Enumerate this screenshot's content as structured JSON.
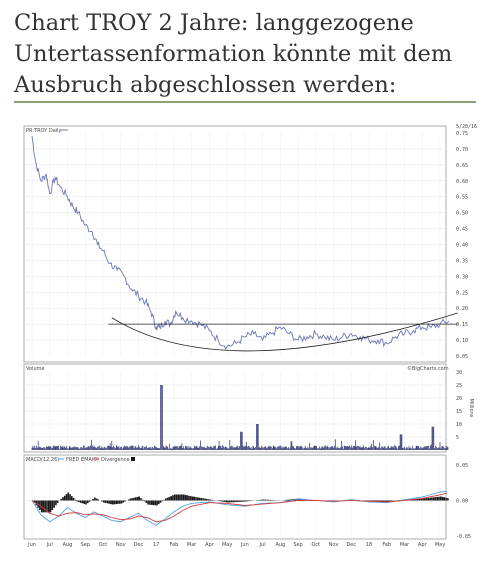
{
  "heading": {
    "line1": "Chart TROY 2 Jahre: langgezogene",
    "line2": "Untertassenformation könnte mit dem",
    "line3": "Ausbruch abgeschlossen werden:"
  },
  "colors": {
    "price": "#6e76b4",
    "volume": "#2a2d6a",
    "macd": "#1a1a1a",
    "macd_line": "#4f9fe3",
    "signal": "#d63b3b",
    "rule": "#8aa178"
  },
  "chart_data": [
    {
      "type": "line",
      "title": "PR:TROY Daily",
      "date_label": "5/20/16",
      "ylim": [
        0.05,
        0.75
      ],
      "y_ticks": [
        "0.75",
        "0.70",
        "0.65",
        "0.60",
        "0.55",
        "0.50",
        "0.45",
        "0.40",
        "0.35",
        "0.30",
        "0.25",
        "0.20",
        "0.15",
        "0.10",
        "0.05"
      ],
      "months": [
        "Jun",
        "Jul",
        "Aug",
        "Sep",
        "Oct",
        "Nov",
        "Dec",
        "17",
        "Feb",
        "Mar",
        "Apr",
        "May",
        "Jun",
        "Jul",
        "Aug",
        "Sep",
        "Oct",
        "Nov",
        "Dec",
        "18",
        "Feb",
        "Mar",
        "Apr",
        "May"
      ],
      "series": [
        {
          "x": [
            0,
            0.2,
            0.5,
            0.8,
            1.0,
            1.3,
            1.6,
            2.0,
            2.3,
            2.6,
            3.0,
            3.4,
            3.7,
            4.0,
            4.4,
            4.8,
            5.2,
            5.6,
            6.0,
            6.4,
            6.7,
            7.0,
            7.2,
            7.5,
            7.8,
            8.1,
            8.5,
            9.0,
            9.5,
            10.0,
            10.5,
            11.0,
            11.5,
            12.0,
            12.5,
            13.0,
            13.5,
            14.0,
            14.5,
            15.0,
            15.5,
            16.0,
            16.5,
            17.0,
            17.5,
            18.0,
            18.5,
            19.0,
            19.5,
            20.0,
            20.5,
            21.0,
            21.5,
            22.0,
            22.5,
            23.0,
            23.5
          ],
          "y": [
            0.74,
            0.66,
            0.6,
            0.62,
            0.56,
            0.61,
            0.58,
            0.55,
            0.52,
            0.5,
            0.46,
            0.44,
            0.4,
            0.38,
            0.34,
            0.32,
            0.3,
            0.26,
            0.24,
            0.22,
            0.19,
            0.14,
            0.14,
            0.16,
            0.15,
            0.19,
            0.17,
            0.16,
            0.15,
            0.13,
            0.1,
            0.08,
            0.09,
            0.11,
            0.12,
            0.1,
            0.12,
            0.14,
            0.12,
            0.1,
            0.11,
            0.12,
            0.11,
            0.1,
            0.11,
            0.12,
            0.11,
            0.1,
            0.1,
            0.09,
            0.11,
            0.12,
            0.13,
            0.14,
            0.14,
            0.15,
            0.16
          ]
        }
      ],
      "annotations": [
        {
          "type": "horizontal-resistance",
          "y": 0.15
        },
        {
          "type": "saucer-curve",
          "x": [
            4.5,
            12.5,
            24.0
          ],
          "y": [
            0.17,
            0.066,
            0.185
          ]
        }
      ]
    },
    {
      "type": "bar",
      "title": "Volume",
      "source": "©BigCharts.com",
      "unit": "Millions",
      "ylim": [
        0,
        30
      ],
      "y_ticks": [
        "30",
        "25",
        "20",
        "15",
        "10",
        "5"
      ],
      "spikes": [
        {
          "x": 7.3,
          "value": 25
        },
        {
          "x": 12.7,
          "value": 10
        },
        {
          "x": 11.8,
          "value": 7
        },
        {
          "x": 22.6,
          "value": 9
        },
        {
          "x": 20.8,
          "value": 6
        }
      ]
    },
    {
      "type": "line",
      "title": "MACD(12,26)",
      "legend_items": [
        "FRED EMA(9)",
        "Divergence"
      ],
      "ylim": [
        -0.05,
        0.05
      ],
      "y_ticks": [
        "0.05",
        "0.00",
        "-0.05"
      ],
      "series": [
        {
          "name": "MACD(12,26)",
          "x": [
            0,
            0.5,
            1,
            1.5,
            2,
            2.5,
            3,
            3.5,
            4,
            4.5,
            5,
            5.5,
            6,
            6.5,
            7,
            7.5,
            8,
            8.5,
            9,
            10,
            11,
            12,
            13,
            14,
            15,
            16,
            17,
            18,
            19,
            20,
            21,
            22,
            23,
            23.5
          ],
          "y": [
            0,
            -0.02,
            -0.03,
            -0.022,
            -0.01,
            -0.018,
            -0.024,
            -0.016,
            -0.022,
            -0.028,
            -0.03,
            -0.024,
            -0.018,
            -0.028,
            -0.035,
            -0.026,
            -0.016,
            -0.008,
            -0.004,
            -0.002,
            -0.006,
            -0.008,
            -0.004,
            -0.003,
            0.002,
            0.0,
            -0.002,
            0.001,
            -0.002,
            -0.003,
            0.001,
            0.005,
            0.012,
            0.013
          ]
        },
        {
          "name": "FRED EMA(9)",
          "x": [
            0,
            0.5,
            1,
            1.5,
            2,
            2.5,
            3,
            3.5,
            4,
            4.5,
            5,
            5.5,
            6,
            6.5,
            7,
            7.5,
            8,
            8.5,
            9,
            10,
            11,
            12,
            13,
            14,
            15,
            16,
            17,
            18,
            19,
            20,
            21,
            22,
            23,
            23.5
          ],
          "y": [
            0,
            -0.008,
            -0.018,
            -0.022,
            -0.018,
            -0.017,
            -0.02,
            -0.019,
            -0.02,
            -0.024,
            -0.027,
            -0.026,
            -0.022,
            -0.024,
            -0.03,
            -0.028,
            -0.022,
            -0.014,
            -0.008,
            -0.003,
            -0.004,
            -0.007,
            -0.005,
            -0.003,
            0.0,
            0.0,
            -0.001,
            0.0,
            -0.001,
            -0.002,
            0.0,
            0.003,
            0.008,
            0.011
          ]
        }
      ]
    }
  ]
}
